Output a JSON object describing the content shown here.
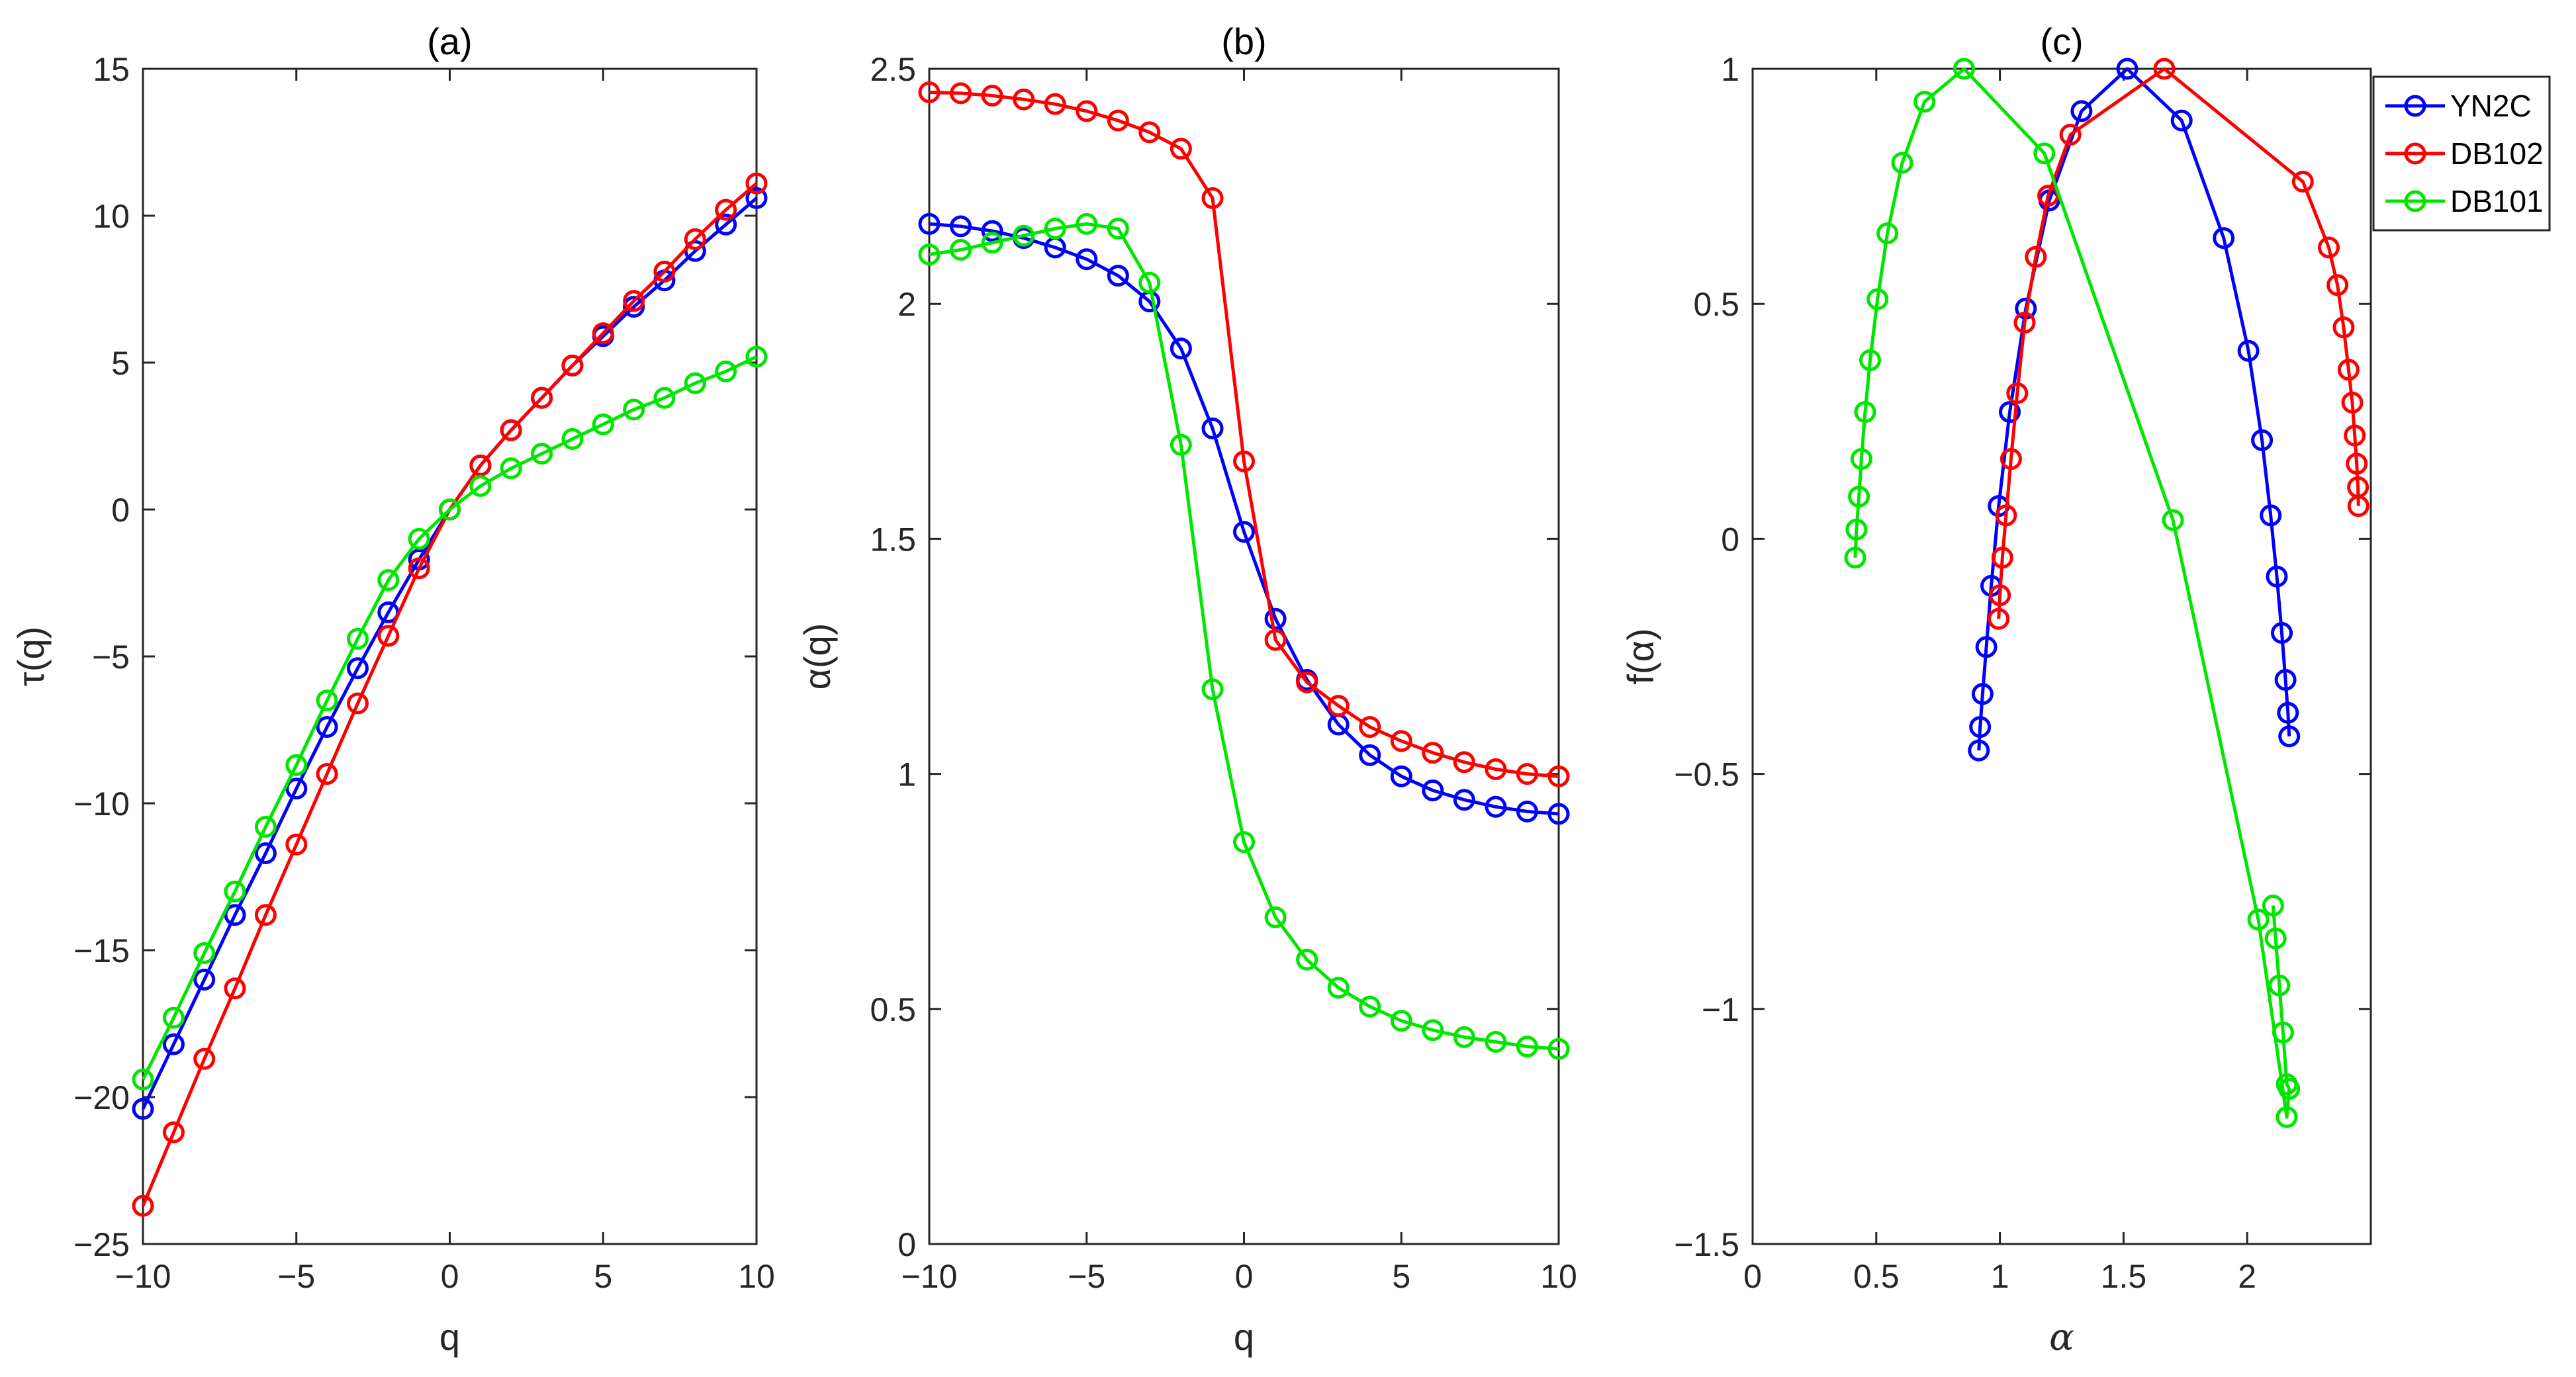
{
  "colors": {
    "YN2C": "#0000ff",
    "DB102": "#ff0000",
    "DB101": "#00e600",
    "axis": "#262626"
  },
  "legend": {
    "entries": [
      "YN2C",
      "DB102",
      "DB101"
    ],
    "placement": "outside-top-right"
  },
  "chart_data": [
    {
      "type": "line",
      "title": "(a)",
      "xlabel": "q",
      "ylabel": "τ(q)",
      "xlim": [
        -10,
        10
      ],
      "ylim": [
        -25,
        15
      ],
      "xticks": [
        -10,
        -5,
        0,
        5,
        10
      ],
      "xtick_labels": [
        "−10",
        "−5",
        "0",
        "5",
        "10"
      ],
      "yticks": [
        15,
        10,
        5,
        0,
        -5,
        -10,
        -15,
        -20,
        -25
      ],
      "ytick_labels": [
        "15",
        "10",
        "5",
        "0",
        "−5",
        "−10",
        "−15",
        "−20",
        "−25"
      ],
      "x": [
        -10,
        -9,
        -8,
        -7,
        -6,
        -5,
        -4,
        -3,
        -2,
        -1,
        0,
        1,
        2,
        3,
        4,
        5,
        6,
        7,
        8,
        9,
        10
      ],
      "series": [
        {
          "name": "YN2C",
          "values": [
            -20.4,
            -18.2,
            -16.0,
            -13.8,
            -11.7,
            -9.5,
            -7.4,
            -5.4,
            -3.5,
            -1.7,
            0,
            1.5,
            2.7,
            3.8,
            4.9,
            5.9,
            6.9,
            7.8,
            8.8,
            9.7,
            10.6
          ]
        },
        {
          "name": "DB102",
          "values": [
            -23.7,
            -21.2,
            -18.7,
            -16.3,
            -13.8,
            -11.4,
            -9.0,
            -6.6,
            -4.3,
            -2.0,
            0,
            1.5,
            2.7,
            3.8,
            4.9,
            6.0,
            7.1,
            8.1,
            9.2,
            10.2,
            11.1
          ]
        },
        {
          "name": "DB101",
          "values": [
            -19.4,
            -17.3,
            -15.1,
            -13.0,
            -10.8,
            -8.7,
            -6.5,
            -4.4,
            -2.4,
            -1.0,
            0,
            0.8,
            1.4,
            1.9,
            2.4,
            2.9,
            3.4,
            3.8,
            4.3,
            4.7,
            5.2
          ]
        }
      ]
    },
    {
      "type": "line",
      "title": "(b)",
      "xlabel": "q",
      "ylabel": "α(q)",
      "xlim": [
        -10,
        10
      ],
      "ylim": [
        0,
        2.5
      ],
      "xticks": [
        -10,
        -5,
        0,
        5,
        10
      ],
      "xtick_labels": [
        "−10",
        "−5",
        "0",
        "5",
        "10"
      ],
      "yticks": [
        2.5,
        2,
        1.5,
        1,
        0.5,
        0
      ],
      "ytick_labels": [
        "2.5",
        "2",
        "1.5",
        "1",
        "0.5",
        "0"
      ],
      "x": [
        -10,
        -9,
        -8,
        -7,
        -6,
        -5,
        -4,
        -3,
        -2,
        -1,
        0,
        1,
        2,
        3,
        4,
        5,
        6,
        7,
        8,
        9,
        10
      ],
      "series": [
        {
          "name": "YN2C",
          "values": [
            2.17,
            2.165,
            2.155,
            2.14,
            2.12,
            2.095,
            2.06,
            2.005,
            1.905,
            1.735,
            1.515,
            1.33,
            1.2,
            1.105,
            1.04,
            0.995,
            0.965,
            0.945,
            0.93,
            0.92,
            0.915
          ]
        },
        {
          "name": "DB102",
          "values": [
            2.45,
            2.448,
            2.443,
            2.435,
            2.425,
            2.41,
            2.39,
            2.365,
            2.33,
            2.225,
            1.665,
            1.285,
            1.195,
            1.145,
            1.1,
            1.07,
            1.045,
            1.025,
            1.01,
            1.0,
            0.995
          ]
        },
        {
          "name": "DB101",
          "values": [
            2.105,
            2.115,
            2.13,
            2.145,
            2.16,
            2.17,
            2.16,
            2.045,
            1.7,
            1.18,
            0.855,
            0.695,
            0.605,
            0.545,
            0.505,
            0.475,
            0.455,
            0.44,
            0.43,
            0.42,
            0.415
          ]
        }
      ]
    },
    {
      "type": "line",
      "title": "(c)",
      "xlabel": "α",
      "ylabel": "f(α)",
      "xlim": [
        0,
        2.5
      ],
      "ylim": [
        -1.5,
        1
      ],
      "xticks": [
        0,
        0.5,
        1,
        1.5,
        2
      ],
      "xtick_labels": [
        "0",
        "0.5",
        "1",
        "1.5",
        "2"
      ],
      "yticks": [
        1,
        0.5,
        0,
        -0.5,
        -1,
        -1.5
      ],
      "ytick_labels": [
        "1",
        "0.5",
        "0",
        "−0.5",
        "−1",
        "−1.5"
      ],
      "series": [
        {
          "name": "YN2C",
          "x": [
            0.915,
            0.92,
            0.93,
            0.945,
            0.965,
            0.995,
            1.04,
            1.105,
            1.2,
            1.33,
            1.515,
            1.735,
            1.905,
            2.005,
            2.06,
            2.095,
            2.12,
            2.14,
            2.155,
            2.165,
            2.17
          ],
          "values": [
            -0.45,
            -0.4,
            -0.33,
            -0.23,
            -0.1,
            0.07,
            0.27,
            0.49,
            0.72,
            0.91,
            1.0,
            0.89,
            0.64,
            0.4,
            0.21,
            0.05,
            -0.08,
            -0.2,
            -0.3,
            -0.37,
            -0.42
          ]
        },
        {
          "name": "DB102",
          "x": [
            0.995,
            1.0,
            1.01,
            1.025,
            1.045,
            1.07,
            1.1,
            1.145,
            1.195,
            1.285,
            1.665,
            2.225,
            2.33,
            2.365,
            2.39,
            2.41,
            2.425,
            2.435,
            2.443,
            2.448,
            2.45
          ],
          "values": [
            -0.17,
            -0.12,
            -0.04,
            0.05,
            0.17,
            0.31,
            0.46,
            0.6,
            0.73,
            0.86,
            1.0,
            0.76,
            0.62,
            0.54,
            0.45,
            0.36,
            0.29,
            0.22,
            0.16,
            0.11,
            0.07
          ]
        },
        {
          "name": "DB101",
          "x": [
            0.415,
            0.42,
            0.43,
            0.44,
            0.455,
            0.475,
            0.505,
            0.545,
            0.605,
            0.695,
            0.855,
            1.18,
            1.7,
            2.045,
            2.16,
            2.17,
            2.16,
            2.145,
            2.13,
            2.115,
            2.105
          ],
          "values": [
            -0.04,
            0.02,
            0.09,
            0.17,
            0.27,
            0.38,
            0.51,
            0.65,
            0.8,
            0.93,
            1.0,
            0.82,
            0.04,
            -0.81,
            -1.23,
            -1.17,
            -1.16,
            -1.05,
            -0.95,
            -0.85,
            -0.78
          ]
        }
      ]
    }
  ]
}
